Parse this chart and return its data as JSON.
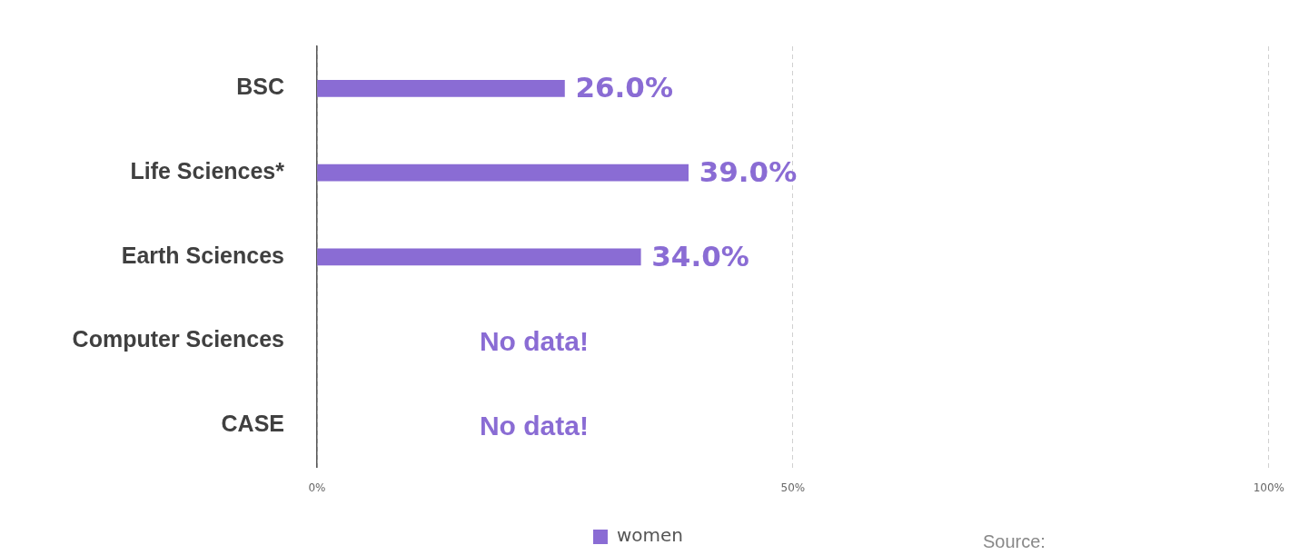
{
  "chart_data": {
    "type": "bar",
    "orientation": "horizontal",
    "categories": [
      "BSC",
      "Life Sciences*",
      "Earth Sciences",
      "Computer Sciences",
      "CASE"
    ],
    "series": [
      {
        "name": "women",
        "color": "#8a6cd4",
        "values": [
          26,
          39,
          34,
          null,
          null
        ],
        "value_labels": [
          "26.0%",
          "39.0%",
          "34.0%",
          null,
          null
        ]
      }
    ],
    "xlim": [
      0,
      100
    ],
    "xticks": [
      {
        "value": 0,
        "label": "0%"
      },
      {
        "value": 50,
        "label": "50%"
      },
      {
        "value": 100,
        "label": "100%"
      }
    ],
    "grid": "x",
    "legend": "bottom",
    "annotations": [
      "No data!",
      "No data!",
      "Source:"
    ]
  }
}
